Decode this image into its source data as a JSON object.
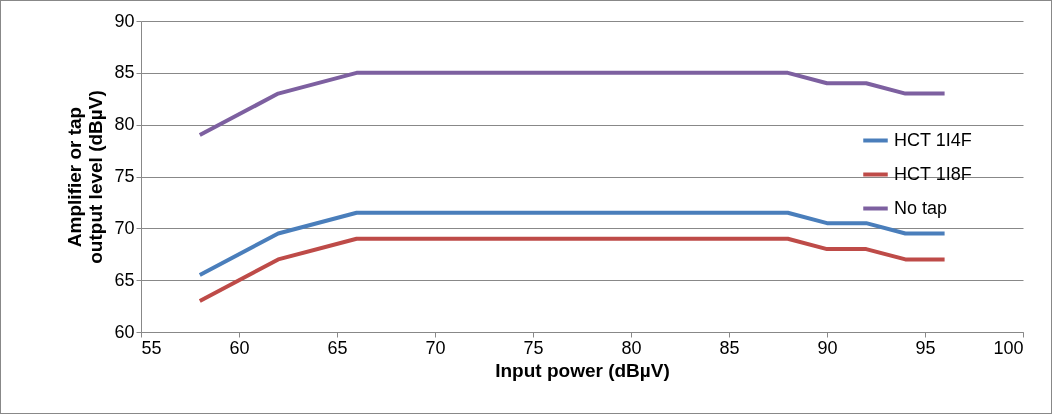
{
  "chart_data": {
    "type": "line",
    "xlabel": "Input power (dBµV)",
    "ylabel": "Amplifier or tap output level (dBµV)",
    "x": [
      58,
      62,
      66,
      88,
      90,
      92,
      94,
      96
    ],
    "xlim": [
      55,
      100
    ],
    "xticks": [
      55,
      60,
      65,
      70,
      75,
      80,
      85,
      90,
      95,
      100
    ],
    "ylim": [
      60,
      90
    ],
    "yticks": [
      60,
      65,
      70,
      75,
      80,
      85,
      90
    ],
    "grid": "y",
    "legend": "right",
    "marker": "none",
    "line_style": "solid",
    "series": [
      {
        "name": "HCT 1I4F",
        "color": "#4a7ebb",
        "values": [
          65.5,
          69.5,
          71.5,
          71.5,
          70.5,
          70.5,
          69.5,
          69.5
        ]
      },
      {
        "name": "HCT 1I8F",
        "color": "#be4b48",
        "values": [
          63,
          67,
          69,
          69,
          68,
          68,
          67,
          67
        ]
      },
      {
        "name": "No tap",
        "color": "#7d60a0",
        "values": [
          79,
          83,
          85,
          85,
          84,
          84,
          83,
          83
        ]
      }
    ]
  }
}
